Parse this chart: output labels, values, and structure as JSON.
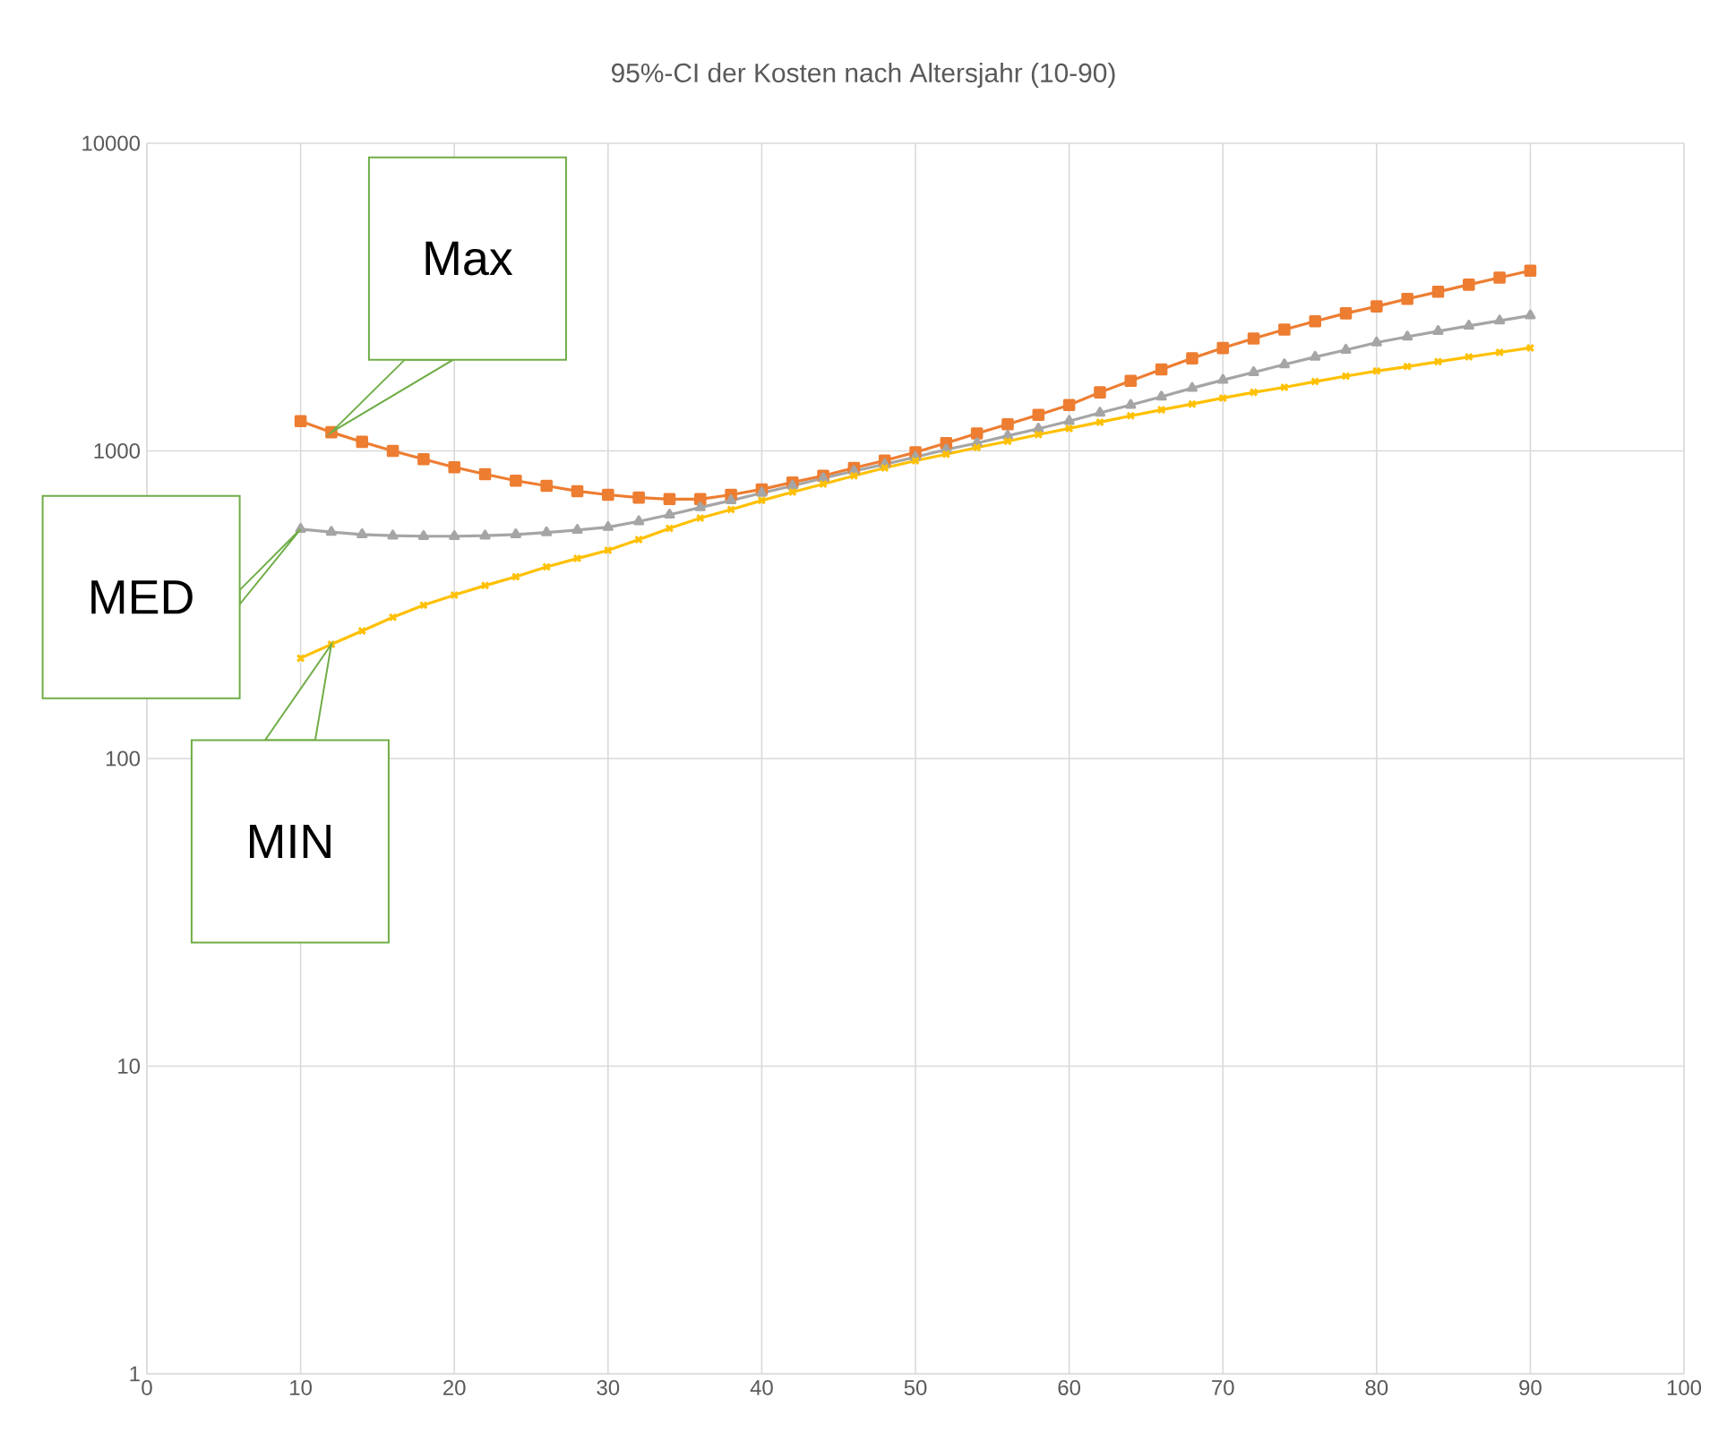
{
  "chart_data": {
    "type": "line",
    "title": "95%-CI der Kosten nach Altersjahr (10-90)",
    "x": [
      10,
      12,
      14,
      16,
      18,
      20,
      22,
      24,
      26,
      28,
      30,
      32,
      34,
      36,
      38,
      40,
      42,
      44,
      46,
      48,
      50,
      52,
      54,
      56,
      58,
      60,
      62,
      64,
      66,
      68,
      70,
      72,
      74,
      76,
      78,
      80,
      82,
      84,
      86,
      88,
      90
    ],
    "series": [
      {
        "color": "#ed7d31",
        "marker": "square",
        "values": [
          1250,
          1150,
          1070,
          1000,
          940,
          885,
          840,
          800,
          770,
          740,
          720,
          705,
          697,
          697,
          720,
          750,
          790,
          830,
          880,
          930,
          990,
          1060,
          1140,
          1220,
          1310,
          1410,
          1550,
          1690,
          1840,
          2000,
          2160,
          2320,
          2480,
          2640,
          2800,
          2950,
          3120,
          3290,
          3470,
          3660,
          3855
        ]
      },
      {
        "color": "#a5a5a5",
        "marker": "triangle",
        "values": [
          557,
          545,
          535,
          530,
          528,
          528,
          530,
          535,
          543,
          553,
          565,
          590,
          620,
          655,
          690,
          730,
          770,
          815,
          860,
          905,
          955,
          1010,
          1060,
          1120,
          1180,
          1250,
          1330,
          1410,
          1500,
          1600,
          1700,
          1800,
          1910,
          2020,
          2130,
          2250,
          2350,
          2450,
          2550,
          2650,
          2755
        ]
      },
      {
        "color": "#ffc000",
        "marker": "cross",
        "values": [
          212,
          235,
          260,
          288,
          315,
          340,
          365,
          390,
          420,
          447,
          475,
          515,
          560,
          605,
          645,
          690,
          735,
          780,
          830,
          880,
          929,
          975,
          1025,
          1075,
          1130,
          1183,
          1240,
          1300,
          1360,
          1420,
          1486,
          1550,
          1610,
          1680,
          1750,
          1818,
          1880,
          1950,
          2020,
          2090,
          2163
        ]
      }
    ],
    "annotations": [
      "Max",
      "MED",
      "MIN"
    ],
    "xlim": [
      0,
      100
    ],
    "xticks": [
      0,
      10,
      20,
      30,
      40,
      50,
      60,
      70,
      80,
      90,
      100
    ],
    "ylim": [
      1,
      10000
    ],
    "yticks": [
      1,
      10,
      100,
      1000,
      10000
    ],
    "log": "y",
    "grid": true,
    "legend": false
  }
}
